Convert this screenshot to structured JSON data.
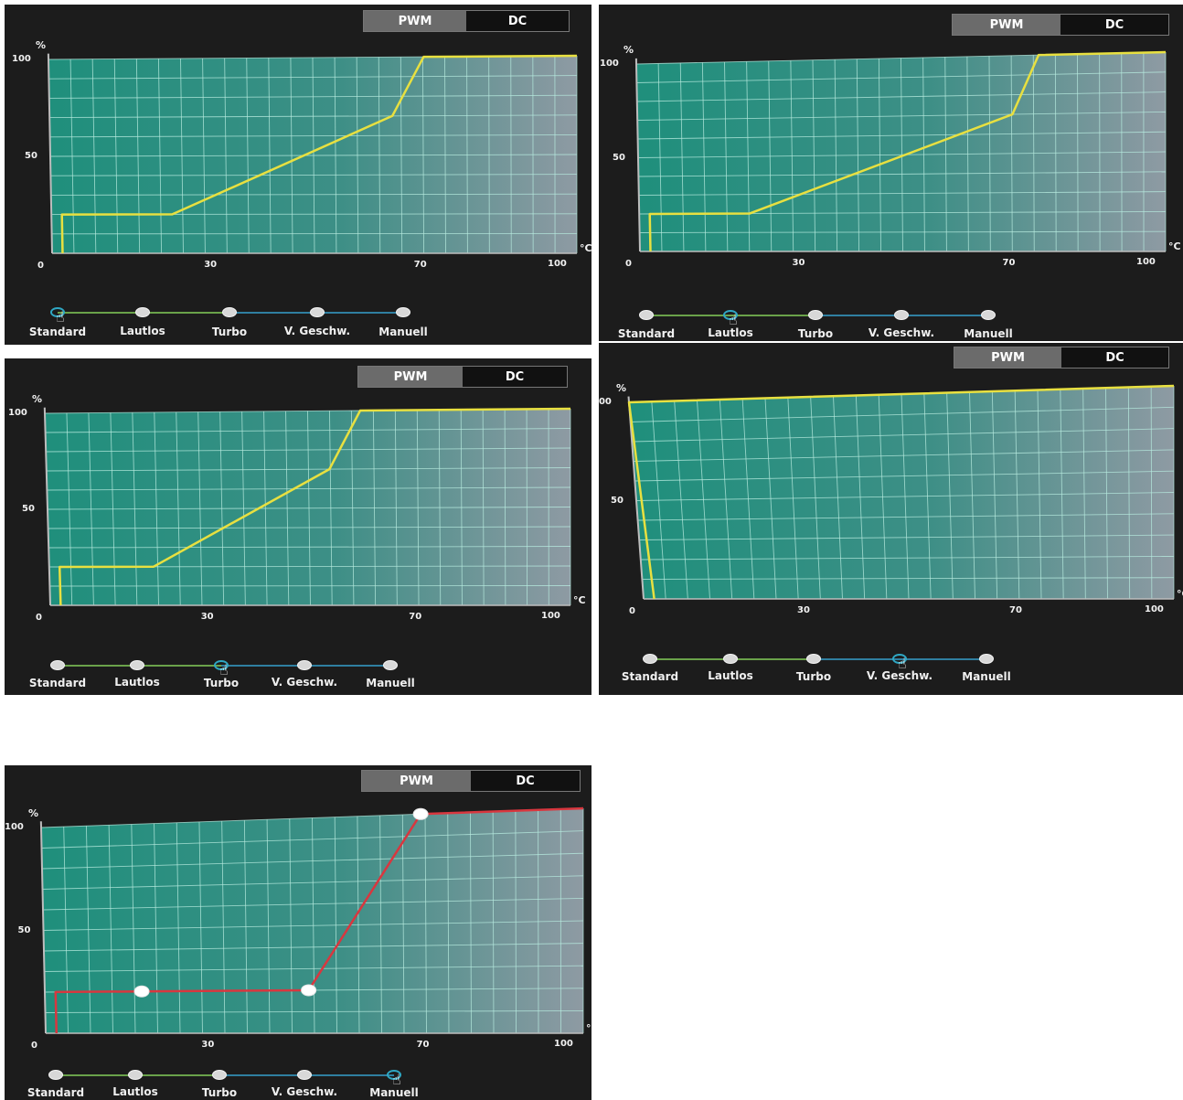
{
  "toggle": {
    "pwm_label": "PWM",
    "dc_label": "DC",
    "active": "PWM"
  },
  "axis": {
    "y_unit": "%",
    "x_unit": "°C",
    "y_ticks": [
      "100",
      "50"
    ],
    "x_ticks": [
      "0",
      "30",
      "70",
      "100"
    ]
  },
  "modes": [
    "Standard",
    "Lautlos",
    "Turbo",
    "V. Geschw.",
    "Manuell"
  ],
  "colors": {
    "grid_fill": "#1f8f7c",
    "grid_fill_right": "#8e9aa3",
    "grid_line": "#b8ece0",
    "curve_auto": "#e8e040",
    "curve_manual": "#d8373f",
    "selected_ring": "#2fa8c4"
  },
  "chart_data": [
    {
      "type": "line",
      "mode_selected": "Standard",
      "x": [
        2,
        2,
        23,
        65,
        71,
        100
      ],
      "y": [
        0,
        20,
        20,
        70,
        100,
        100
      ],
      "xlim": [
        0,
        100
      ],
      "ylim": [
        0,
        100
      ],
      "grid": true
    },
    {
      "type": "line",
      "mode_selected": "Lautlos",
      "x": [
        2,
        2,
        21,
        71,
        76,
        100
      ],
      "y": [
        0,
        20,
        20,
        70,
        100,
        100
      ],
      "xlim": [
        0,
        100
      ],
      "ylim": [
        0,
        100
      ],
      "grid": true
    },
    {
      "type": "line",
      "mode_selected": "Turbo",
      "x": [
        2,
        2,
        20,
        54,
        60,
        100
      ],
      "y": [
        0,
        20,
        20,
        70,
        100,
        100
      ],
      "xlim": [
        0,
        100
      ],
      "ylim": [
        0,
        100
      ],
      "grid": true
    },
    {
      "type": "line",
      "mode_selected": "V. Geschw.",
      "x": [
        2,
        0,
        100
      ],
      "y": [
        0,
        100,
        100
      ],
      "xlim": [
        0,
        100
      ],
      "ylim": [
        0,
        100
      ],
      "grid": true
    },
    {
      "type": "line",
      "mode_selected": "Manuell",
      "x": [
        2,
        2,
        18,
        49,
        70,
        100
      ],
      "y": [
        0,
        20,
        20,
        20,
        100,
        100
      ],
      "xlim": [
        0,
        100
      ],
      "ylim": [
        0,
        100
      ],
      "grid": true,
      "control_points_x": [
        18,
        49,
        70
      ],
      "control_points_y": [
        20,
        20,
        100
      ]
    }
  ]
}
